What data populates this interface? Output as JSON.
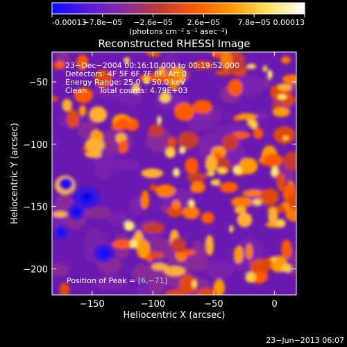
{
  "colorbar": {
    "tick_labels": [
      "-0.00013",
      "−7.8e−05",
      "−2.6e−05",
      "2.6e−05",
      "7.8e−05",
      "0.00013"
    ],
    "tick_values": [
      -0.00013,
      -7.8e-05,
      -2.6e-05,
      2.6e-05,
      7.8e-05,
      0.00013
    ],
    "units_label": "(photons cm⁻² s⁻¹ asec⁻²)",
    "colors": [
      "#0a0aff",
      "#5a1ad8",
      "#8a2aa0",
      "#c43a30",
      "#ff5a00",
      "#ff9a00",
      "#ffe060",
      "#ffffff"
    ]
  },
  "chart_data": {
    "type": "heatmap",
    "title": "Reconstructed RHESSI Image",
    "xlabel": "Heliocentric X (arcsec)",
    "ylabel": "Heliocentric Y (arcsec)",
    "xlim": [
      -183,
      18
    ],
    "ylim": [
      -221,
      -26
    ],
    "xticks": [
      -150,
      -100,
      -50,
      0
    ],
    "yticks": [
      -50,
      -100,
      -150,
      -200
    ],
    "xtick_labels": [
      "−150",
      "−100",
      "−50",
      "0"
    ],
    "ytick_labels": [
      "−50",
      "−100",
      "−150",
      "−200"
    ],
    "value_range": [
      -0.00013,
      0.00013
    ],
    "peak_position": [
      6,
      -71
    ],
    "annotations": [
      "23−Dec−2004 00:16:10.000 to 00:19:52.000",
      "Detectors: 4F 5F 6F 7F 8F, Att 0",
      "Energy Range: 25.0 − 50.0 keV",
      "Clean     Total counts: 4.79E+03"
    ],
    "peak_label": "Position of Peak = ",
    "peak_value": "[6,−71]"
  },
  "footer": {
    "timestamp": "23−Jun−2013 06:07"
  }
}
